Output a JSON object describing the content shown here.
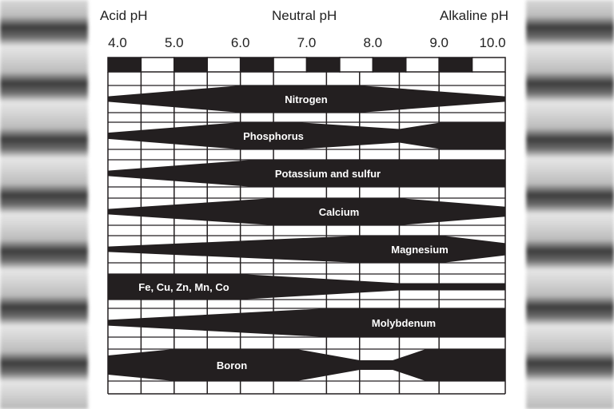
{
  "chart_data": {
    "type": "area",
    "header_labels": {
      "left": "Acid pH",
      "center": "Neutral pH",
      "right": "Alkaline pH"
    },
    "x_ticks": [
      "4.0",
      "5.0",
      "6.0",
      "7.0",
      "8.0",
      "9.0",
      "10.0"
    ],
    "xlim": [
      4.0,
      10.0
    ],
    "value_meaning": "relative band width (0-1)",
    "series": [
      {
        "name": "Nitrogen",
        "points": [
          [
            4.0,
            0.2
          ],
          [
            6.0,
            1
          ],
          [
            7.8,
            1
          ],
          [
            10.0,
            0.2
          ]
        ]
      },
      {
        "name": "Phosphorus",
        "points": [
          [
            4.0,
            0.23
          ],
          [
            6.0,
            1
          ],
          [
            6.85,
            1
          ],
          [
            8.4,
            0.5
          ],
          [
            9.05,
            1
          ],
          [
            10.0,
            1
          ]
        ]
      },
      {
        "name": "Potassium and sulfur",
        "points": [
          [
            4.0,
            0.2
          ],
          [
            6.2,
            1
          ],
          [
            10.0,
            1
          ]
        ]
      },
      {
        "name": "Calcium",
        "points": [
          [
            4.0,
            0.2
          ],
          [
            6.5,
            1
          ],
          [
            8.4,
            1
          ],
          [
            10.0,
            0.37
          ]
        ]
      },
      {
        "name": "Magnesium",
        "points": [
          [
            4.0,
            0.2
          ],
          [
            7.8,
            1
          ],
          [
            9.05,
            1
          ],
          [
            10.0,
            0.45
          ]
        ]
      },
      {
        "name": "Fe, Cu, Zn, Mn, Co",
        "points": [
          [
            4.0,
            1
          ],
          [
            6.0,
            1
          ],
          [
            8.4,
            0.28
          ],
          [
            10.0,
            0.28
          ]
        ]
      },
      {
        "name": "Molybdenum",
        "points": [
          [
            4.0,
            0.2
          ],
          [
            7.3,
            1
          ],
          [
            10.0,
            1
          ]
        ]
      },
      {
        "name": "Boron",
        "points": [
          [
            4.0,
            0.6
          ],
          [
            5.0,
            1
          ],
          [
            6.85,
            1
          ],
          [
            7.8,
            0.3
          ],
          [
            8.3,
            0.3
          ],
          [
            8.8,
            1
          ],
          [
            10.0,
            1
          ]
        ]
      }
    ],
    "colors": {
      "band": "#231f20",
      "grid": "#231f20",
      "background": "#ffffff"
    }
  }
}
